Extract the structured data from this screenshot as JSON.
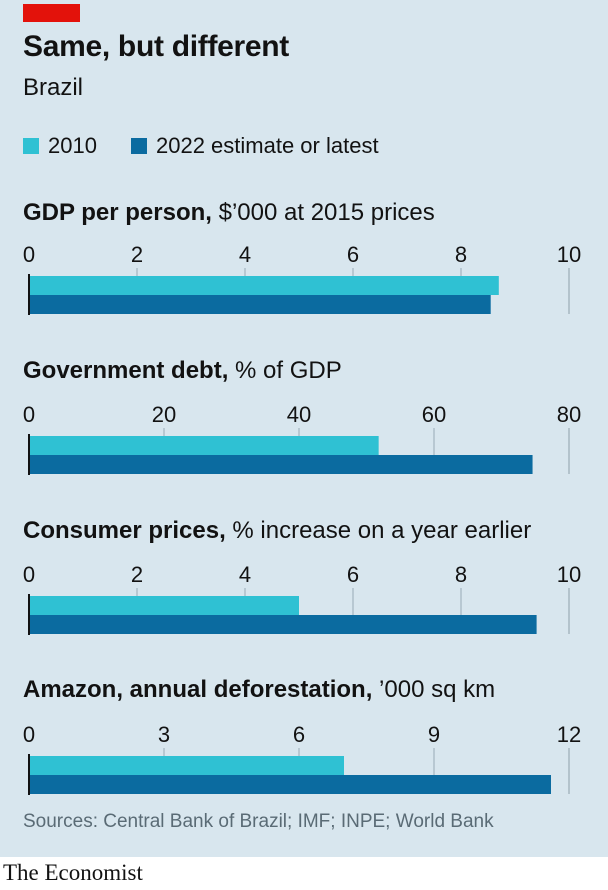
{
  "title": "Same, but different",
  "subtitle": "Brazil",
  "legend": [
    {
      "label": "2010",
      "color": "#2fc1d3"
    },
    {
      "label": "2022 estimate or latest",
      "color": "#0b6ba0"
    }
  ],
  "chart_data": [
    {
      "type": "bar",
      "title_bold": "GDP per person,",
      "title_rest": " $’000 at 2015 prices",
      "series": [
        {
          "name": "2010",
          "values": [
            8.7
          ]
        },
        {
          "name": "2022 estimate or latest",
          "values": [
            8.55
          ]
        }
      ],
      "xlim": [
        0,
        10
      ],
      "ticks": [
        0,
        2,
        4,
        6,
        8,
        10
      ],
      "tick_labels": [
        "0",
        "2",
        "4",
        "6",
        "8",
        "10"
      ]
    },
    {
      "type": "bar",
      "title_bold": "Government debt,",
      "title_rest": " % of GDP",
      "series": [
        {
          "name": "2010",
          "values": [
            51.8
          ]
        },
        {
          "name": "2022 estimate or latest",
          "values": [
            74.6
          ]
        }
      ],
      "xlim": [
        0,
        80
      ],
      "ticks": [
        0,
        20,
        40,
        60,
        80
      ],
      "tick_labels": [
        "0",
        "20",
        "40",
        "60",
        "80"
      ]
    },
    {
      "type": "bar",
      "title_bold": "Consumer prices,",
      "title_rest": " % increase on a year earlier",
      "series": [
        {
          "name": "2010",
          "values": [
            5.0
          ]
        },
        {
          "name": "2022 estimate or latest",
          "values": [
            9.4
          ]
        }
      ],
      "xlim": [
        0,
        10
      ],
      "ticks": [
        0,
        2,
        4,
        6,
        8,
        10
      ],
      "tick_labels": [
        "0",
        "2",
        "4",
        "6",
        "8",
        "10"
      ]
    },
    {
      "type": "bar",
      "title_bold": "Amazon, annual deforestation,",
      "title_rest": " ’000 sq km",
      "series": [
        {
          "name": "2010",
          "values": [
            7.0
          ]
        },
        {
          "name": "2022 estimate or latest",
          "values": [
            11.6
          ]
        }
      ],
      "xlim": [
        0,
        12
      ],
      "ticks": [
        0,
        3,
        6,
        9,
        12
      ],
      "tick_labels": [
        "0",
        "3",
        "6",
        "9",
        "12"
      ]
    }
  ],
  "source": "Sources: Central Bank of Brazil; IMF; INPE; World Bank",
  "brand": "The Economist"
}
